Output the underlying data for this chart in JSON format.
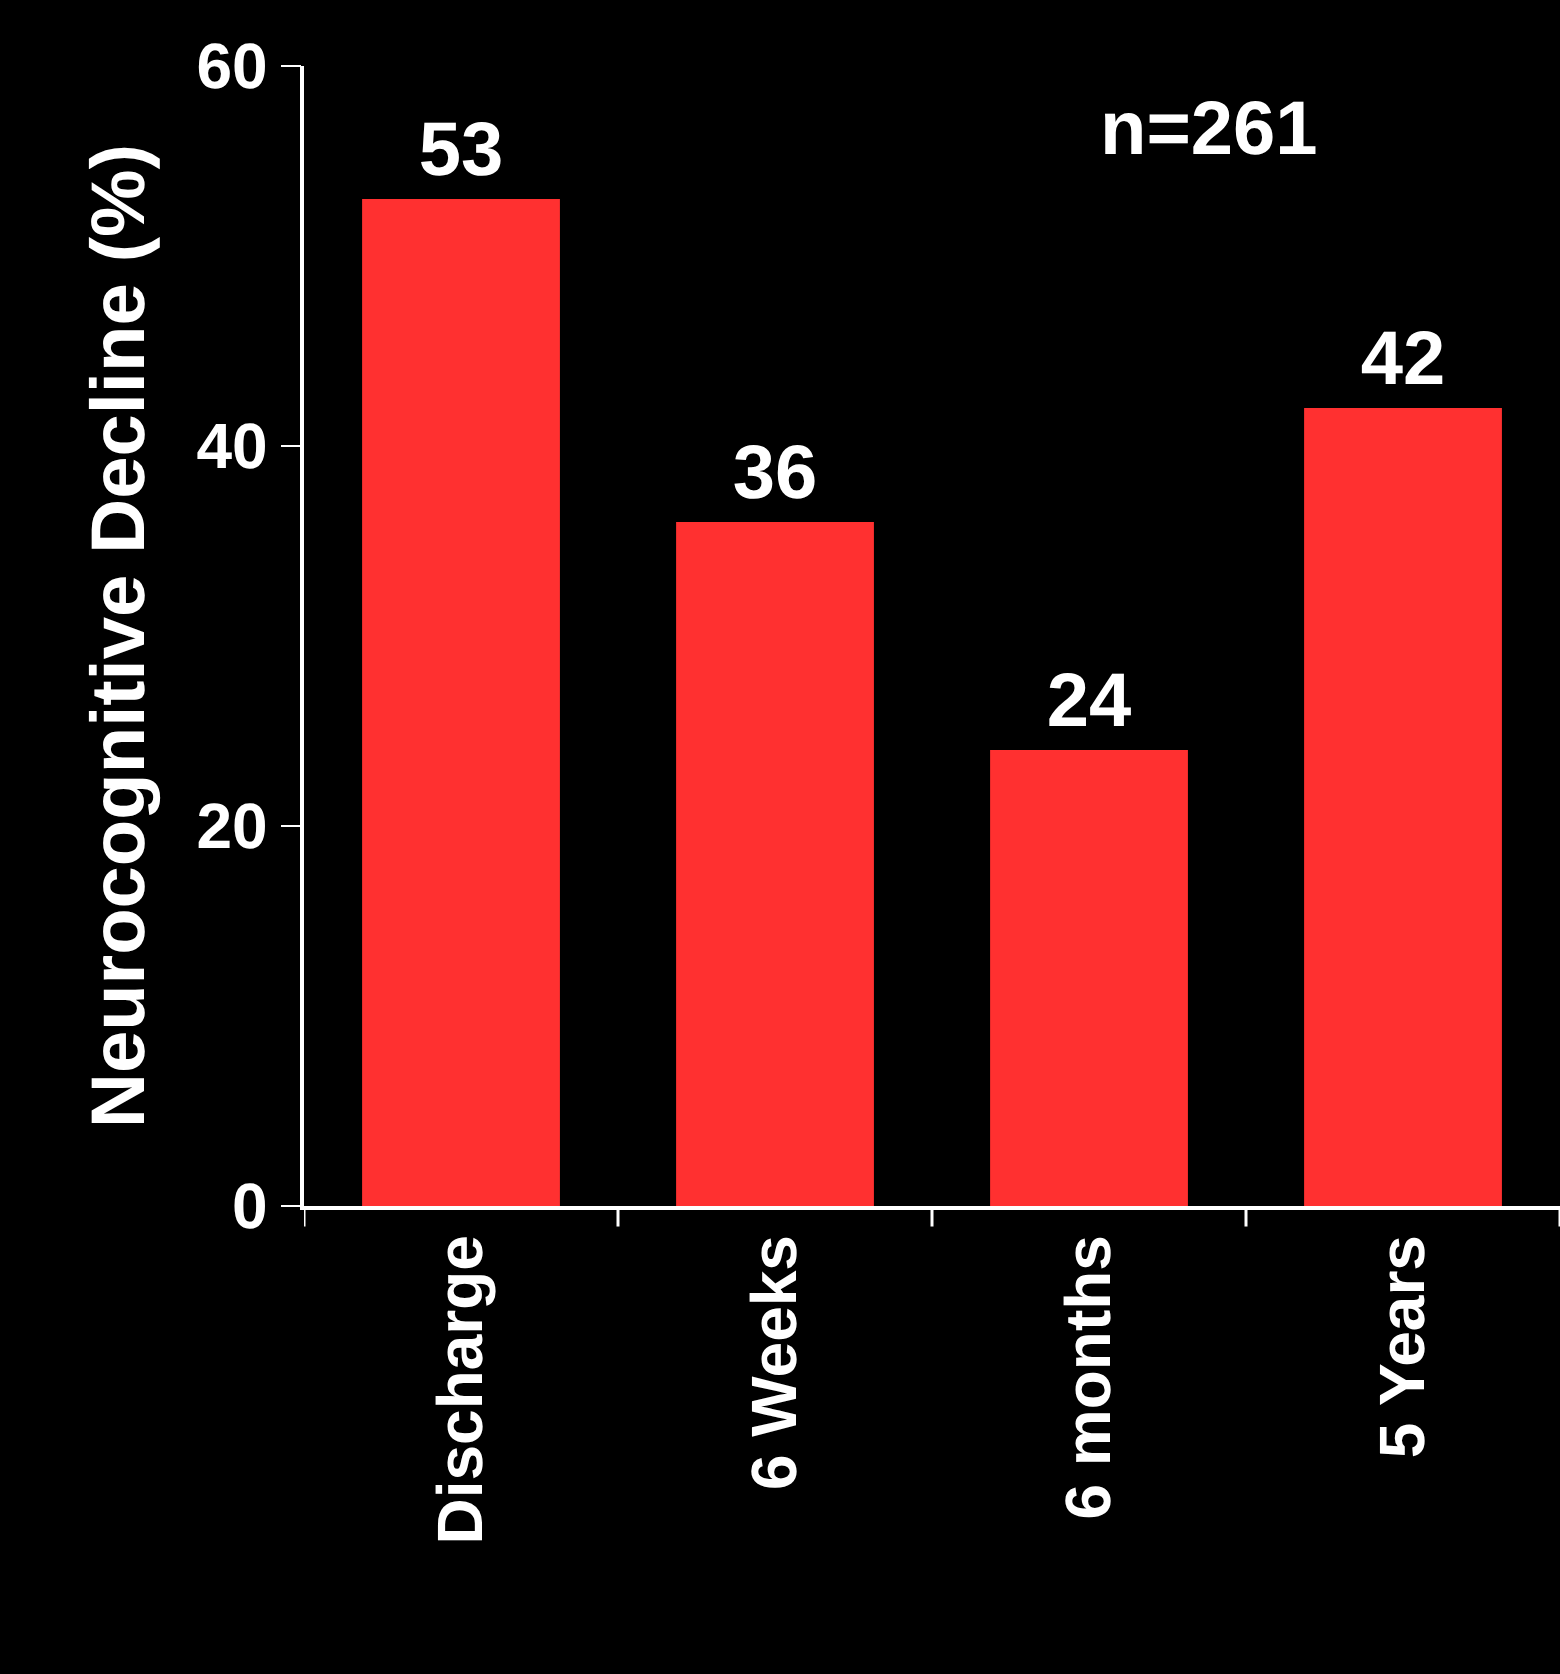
{
  "chart_data": {
    "type": "bar",
    "ylabel": "Neurocognitive Decline (%)",
    "categories": [
      "Discharge",
      "6 Weeks",
      "6 months",
      "5 Years"
    ],
    "values": [
      53,
      36,
      24,
      42
    ],
    "color": "#ff3030",
    "ylim": [
      0,
      60
    ],
    "yticks": [
      0,
      20,
      40,
      60
    ],
    "grid": false,
    "data_labels": true,
    "annotations": [
      "n=261"
    ]
  }
}
